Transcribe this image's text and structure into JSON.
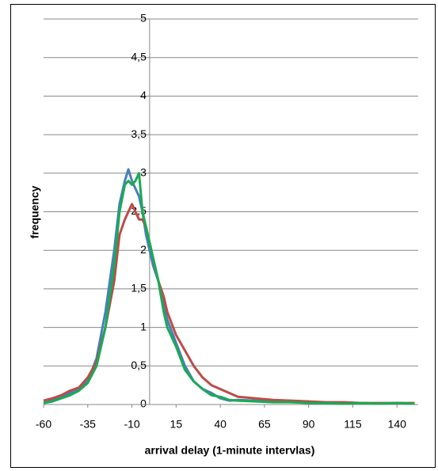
{
  "chart_data": {
    "type": "line",
    "x_label": "arrival delay (1-minute intervlas)",
    "y_label": "frequency",
    "x": [
      -60,
      -55,
      -50,
      -45,
      -40,
      -35,
      -30,
      -25,
      -20,
      -17,
      -14,
      -12,
      -10,
      -8,
      -6,
      -4,
      -2,
      0,
      2,
      5,
      8,
      10,
      15,
      20,
      25,
      30,
      35,
      40,
      45,
      50,
      60,
      70,
      80,
      90,
      100,
      110,
      120,
      130,
      140,
      150
    ],
    "series": [
      {
        "color": "#4a7ebb",
        "values": [
          0.02,
          0.05,
          0.1,
          0.15,
          0.2,
          0.3,
          0.6,
          1.2,
          2.0,
          2.6,
          2.9,
          3.05,
          2.9,
          2.8,
          2.7,
          2.5,
          2.2,
          2.0,
          1.8,
          1.6,
          1.3,
          1.1,
          0.8,
          0.5,
          0.3,
          0.2,
          0.15,
          0.08,
          0.05,
          0.06,
          0.05,
          0.04,
          0.03,
          0.03,
          0.02,
          0.02,
          0.02,
          0.01,
          0.02,
          0.01
        ]
      },
      {
        "color": "#be4b48",
        "values": [
          0.05,
          0.08,
          0.12,
          0.18,
          0.22,
          0.35,
          0.55,
          1.0,
          1.6,
          2.2,
          2.4,
          2.5,
          2.6,
          2.5,
          2.4,
          2.4,
          2.3,
          2.1,
          1.9,
          1.6,
          1.4,
          1.2,
          0.9,
          0.7,
          0.5,
          0.35,
          0.25,
          0.2,
          0.15,
          0.1,
          0.08,
          0.06,
          0.05,
          0.04,
          0.03,
          0.03,
          0.02,
          0.02,
          0.02,
          0.02
        ]
      },
      {
        "color": "#1aaa55",
        "values": [
          0.02,
          0.04,
          0.08,
          0.12,
          0.18,
          0.28,
          0.5,
          1.0,
          1.8,
          2.5,
          2.85,
          2.9,
          2.85,
          2.9,
          3.0,
          2.5,
          2.3,
          2.1,
          1.9,
          1.6,
          1.2,
          1.0,
          0.75,
          0.45,
          0.3,
          0.2,
          0.12,
          0.1,
          0.06,
          0.05,
          0.04,
          0.03,
          0.03,
          0.02,
          0.02,
          0.01,
          0.02,
          0.01,
          0.02,
          0.01
        ]
      }
    ],
    "xlim": [
      -60,
      152
    ],
    "xticks": [
      -60,
      -35,
      -10,
      15,
      40,
      65,
      90,
      115,
      140
    ],
    "ylim": [
      0,
      5
    ],
    "yticks": [
      0,
      {
        "value": 0.5,
        "label": "0,5"
      },
      1,
      {
        "value": 1.5,
        "label": "1,5"
      },
      2,
      {
        "value": 2.5,
        "label": "2,5"
      },
      3,
      {
        "value": 3.5,
        "label": "3,5"
      },
      4,
      {
        "value": 4.5,
        "label": "4,5"
      },
      5
    ],
    "grid": true
  }
}
